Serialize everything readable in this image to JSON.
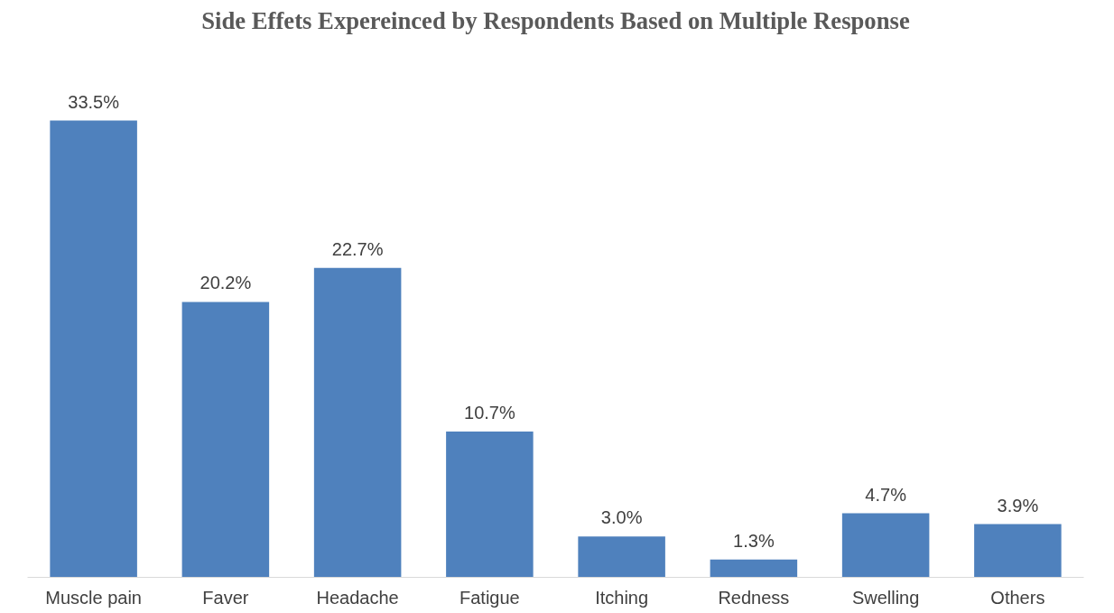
{
  "chart_data": {
    "type": "bar",
    "title": "Side Effets Expereinced by Respondents Based on Multiple Response",
    "categories": [
      "Muscle pain",
      "Faver",
      "Headache",
      "Fatigue",
      "Itching",
      "Redness",
      "Swelling",
      "Others"
    ],
    "values": [
      33.5,
      20.2,
      22.7,
      10.7,
      3.0,
      1.3,
      4.7,
      3.9
    ],
    "value_labels": [
      "33.5%",
      "20.2%",
      "22.7%",
      "10.7%",
      "3.0%",
      "1.3%",
      "4.7%",
      "3.9%"
    ],
    "color": "#4f81bd"
  }
}
